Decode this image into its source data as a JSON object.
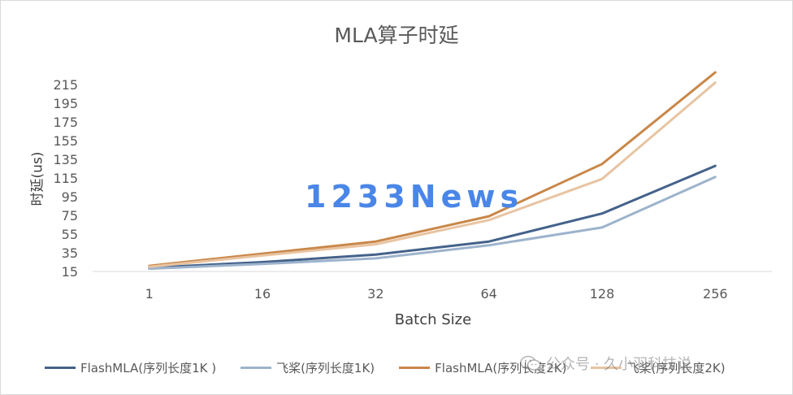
{
  "chart_data": {
    "type": "line",
    "title": "MLA算子时延",
    "xlabel": "Batch Size",
    "ylabel": "时延(us)",
    "categories": [
      "1",
      "16",
      "32",
      "64",
      "128",
      "256"
    ],
    "yticks": [
      15,
      35,
      55,
      75,
      95,
      115,
      135,
      155,
      175,
      195,
      215
    ],
    "ylim": [
      15,
      215
    ],
    "grid": false,
    "legend_position": "bottom",
    "series": [
      {
        "name": "FlashMLA(序列长度1K )",
        "color": "#44628a",
        "values": [
          19,
          25,
          33,
          47,
          77,
          128
        ]
      },
      {
        "name": "飞桨(序列长度1K)",
        "color": "#9db3cc",
        "values": [
          18,
          23,
          29,
          43,
          62,
          116
        ]
      },
      {
        "name": "FlashMLA(序列长度2K)",
        "color": "#c98749",
        "values": [
          21,
          34,
          47,
          74,
          130,
          228
        ]
      },
      {
        "name": "飞桨(序列长度2K)",
        "color": "#e8c4a2",
        "values": [
          20,
          32,
          44,
          70,
          114,
          217
        ]
      }
    ]
  },
  "watermark": "1233News",
  "credit": {
    "icon": "wechat-icon",
    "text": "公众号 · 久小羽科技说"
  }
}
